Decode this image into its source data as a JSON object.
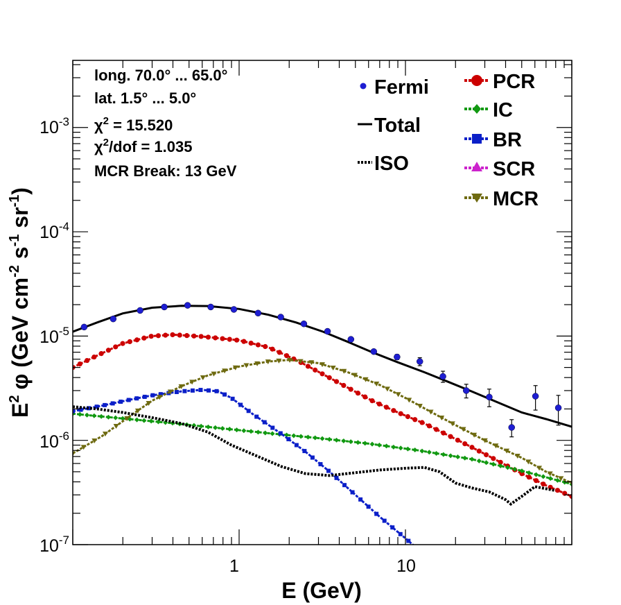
{
  "colors": {
    "background": "#ffffff",
    "axis": "#000000",
    "fermi": "#1e1ed2",
    "total": "#000000",
    "iso": "#000000",
    "pcr": "#cc0000",
    "ic": "#119911",
    "br": "#0b1fc8",
    "scr": "#cc22cc",
    "mcr": "#6e6a10"
  },
  "info": {
    "longitude": "long. 70.0° ... 65.0°",
    "latitude": "lat. 1.5° ... 5.0°",
    "chi2_symbol": "χ",
    "chi2_sup": "2",
    "chi2_value": " = 15.520",
    "chi2dof_symbol": "χ",
    "chi2dof_sup": "2",
    "chi2dof_value": "/dof = 1.035",
    "mcr_break": "MCR Break: 13 GeV"
  },
  "legend": {
    "fermi": "Fermi",
    "total": "Total",
    "iso": "ISO",
    "pcr": "PCR",
    "ic": "IC",
    "br": "BR",
    "scr": "SCR",
    "mcr": "MCR"
  },
  "axes": {
    "xlabel": "E (GeV)",
    "ylabel": {
      "pre": "E",
      "sup1": "2",
      "phi": "φ (GeV cm",
      "sup2": "-2",
      "mid": " s",
      "sup3": "-1",
      "mid2": " sr",
      "sup4": "-1",
      "end": ")"
    },
    "x_ticks": [
      "1",
      "10"
    ],
    "y_ticks": [
      {
        "base": "10",
        "exp": "-7"
      },
      {
        "base": "10",
        "exp": "-6"
      },
      {
        "base": "10",
        "exp": "-5"
      },
      {
        "base": "10",
        "exp": "-4"
      },
      {
        "base": "10",
        "exp": "-3"
      }
    ]
  },
  "chart_data": {
    "type": "scatter",
    "x_scale": "log",
    "y_scale": "log",
    "xlim": [
      0.1,
      100
    ],
    "ylim": [
      1e-07,
      0.0044
    ],
    "xlabel": "E (GeV)",
    "ylabel": "E² φ (GeV cm⁻² s⁻¹ sr⁻¹)",
    "grid": false,
    "legend_position": "top-right",
    "fermi": {
      "x": [
        0.117,
        0.175,
        0.254,
        0.355,
        0.49,
        0.675,
        0.93,
        1.3,
        1.78,
        2.45,
        3.4,
        4.7,
        6.45,
        8.9,
        12.2,
        16.8,
        23.2,
        31.9,
        43.5,
        60.5,
        83.0
      ],
      "y": [
        1.22e-05,
        1.46e-05,
        1.76e-05,
        1.9e-05,
        1.97e-05,
        1.9e-05,
        1.8e-05,
        1.66e-05,
        1.52e-05,
        1.31e-05,
        1.11e-05,
        9.3e-06,
        7.1e-06,
        6.3e-06,
        5.7e-06,
        4.1e-06,
        3e-06,
        2.6e-06,
        1.33e-06,
        2.65e-06,
        2.05e-06
      ],
      "err": [
        0,
        0,
        0,
        0,
        0,
        0,
        0,
        0,
        0,
        0,
        0,
        3e-07,
        3e-07,
        3.5e-07,
        5e-07,
        5e-07,
        4.5e-07,
        5e-07,
        2.5e-07,
        7e-07,
        6.5e-07
      ]
    },
    "series": [
      {
        "name": "Total",
        "style": "solid",
        "x": [
          0.1,
          0.14,
          0.2,
          0.3,
          0.45,
          0.65,
          1.0,
          1.5,
          2.2,
          3.2,
          4.5,
          6.3,
          9.0,
          13,
          18,
          25,
          35,
          50,
          70,
          100
        ],
        "y": [
          1.1e-05,
          1.35e-05,
          1.65e-05,
          1.87e-05,
          1.95e-05,
          1.94e-05,
          1.82e-05,
          1.6e-05,
          1.35e-05,
          1.1e-05,
          8.8e-06,
          7e-06,
          5.6e-06,
          4.5e-06,
          3.65e-06,
          2.95e-06,
          2.35e-06,
          1.85e-06,
          1.6e-06,
          1.35e-06
        ]
      },
      {
        "name": "PCR",
        "style": "circle",
        "x": [
          0.1,
          0.14,
          0.2,
          0.3,
          0.4,
          0.6,
          1.0,
          1.5,
          2.2,
          3.2,
          4.5,
          6.3,
          9.0,
          13,
          18,
          25,
          35,
          50,
          70,
          100
        ],
        "y": [
          5e-06,
          6.5e-06,
          8.5e-06,
          1e-05,
          1.03e-05,
          9.9e-06,
          9.1e-06,
          7.8e-06,
          5.9e-06,
          4.3e-06,
          3.2e-06,
          2.4e-06,
          1.85e-06,
          1.45e-06,
          1.12e-06,
          8.6e-07,
          6.5e-07,
          4.8e-07,
          3.7e-07,
          2.9e-07
        ]
      },
      {
        "name": "IC",
        "style": "diamond",
        "x": [
          0.1,
          0.2,
          0.4,
          0.8,
          1.5,
          3.0,
          6.0,
          12,
          25,
          50,
          100
        ],
        "y": [
          1.8e-06,
          1.62e-06,
          1.46e-06,
          1.3e-06,
          1.17e-06,
          1.05e-06,
          9.3e-07,
          8e-07,
          6.6e-07,
          5.1e-07,
          3.8e-07
        ]
      },
      {
        "name": "BR",
        "style": "square",
        "x": [
          0.1,
          0.15,
          0.22,
          0.3,
          0.45,
          0.6,
          0.75,
          0.9,
          1.2,
          1.8,
          2.5,
          3.5,
          5.0,
          7.0,
          10,
          13
        ],
        "y": [
          1.9e-06,
          2.15e-06,
          2.45e-06,
          2.7e-06,
          2.95e-06,
          3.05e-06,
          2.95e-06,
          2.55e-06,
          1.8e-06,
          1.15e-06,
          7.8e-07,
          5e-07,
          3e-07,
          1.85e-07,
          1.15e-07,
          8e-08
        ]
      },
      {
        "name": "MCR",
        "style": "triangle-down",
        "x": [
          0.1,
          0.15,
          0.22,
          0.3,
          0.45,
          0.65,
          1.0,
          1.5,
          2.0,
          3.0,
          4.5,
          7.0,
          10,
          14,
          20,
          30,
          50,
          70,
          100
        ],
        "y": [
          7.5e-07,
          1.1e-06,
          1.7e-06,
          2.4e-06,
          3.3e-06,
          4.2e-06,
          5.1e-06,
          5.7e-06,
          5.9e-06,
          5.5e-06,
          4.5e-06,
          3.4e-06,
          2.55e-06,
          1.9e-06,
          1.4e-06,
          1e-06,
          6.8e-07,
          5e-07,
          3.9e-07
        ]
      },
      {
        "name": "ISO",
        "style": "dotted",
        "x": [
          0.1,
          0.14,
          0.2,
          0.3,
          0.45,
          0.65,
          0.9,
          1.3,
          1.8,
          2.5,
          3.5,
          5.0,
          7.0,
          10,
          13,
          16,
          20,
          25,
          32,
          40,
          43,
          50,
          60,
          80
        ],
        "y": [
          2.1e-06,
          2e-06,
          1.85e-06,
          1.65e-06,
          1.45e-06,
          1.2e-06,
          9e-07,
          7e-07,
          5.6e-07,
          4.8e-07,
          4.6e-07,
          4.9e-07,
          5.2e-07,
          5.4e-07,
          5.5e-07,
          5e-07,
          3.9e-07,
          3.5e-07,
          3.2e-07,
          2.7e-07,
          2.45e-07,
          2.9e-07,
          3.6e-07,
          3.3e-07
        ]
      }
    ]
  }
}
